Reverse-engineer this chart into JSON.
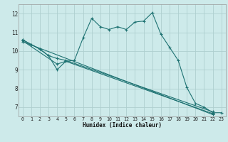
{
  "bg_color": "#cdeaea",
  "grid_color": "#aecfcf",
  "line_color": "#1e7272",
  "xlabel": "Humidex (Indice chaleur)",
  "xlim": [
    -0.5,
    23.5
  ],
  "ylim": [
    6.5,
    12.5
  ],
  "yticks": [
    7,
    8,
    9,
    10,
    11,
    12
  ],
  "xticks": [
    0,
    1,
    2,
    3,
    4,
    5,
    6,
    7,
    8,
    9,
    10,
    11,
    12,
    13,
    14,
    15,
    16,
    17,
    18,
    19,
    20,
    21,
    22,
    23
  ],
  "curve1": [
    [
      0,
      10.6
    ],
    [
      1,
      10.35
    ],
    [
      2,
      10.1
    ],
    [
      3,
      9.75
    ],
    [
      4,
      9.0
    ],
    [
      5,
      9.45
    ],
    [
      6,
      9.5
    ],
    [
      7,
      10.7
    ],
    [
      8,
      11.75
    ],
    [
      9,
      11.3
    ],
    [
      10,
      11.15
    ],
    [
      11,
      11.3
    ],
    [
      12,
      11.15
    ],
    [
      13,
      11.55
    ],
    [
      14,
      11.6
    ],
    [
      15,
      12.05
    ],
    [
      16,
      10.9
    ],
    [
      17,
      10.2
    ],
    [
      18,
      9.5
    ],
    [
      19,
      8.05
    ],
    [
      20,
      7.2
    ],
    [
      21,
      7.0
    ],
    [
      22,
      6.7
    ],
    [
      23,
      6.7
    ]
  ],
  "curve2": [
    [
      0,
      10.6
    ],
    [
      2,
      10.1
    ],
    [
      3,
      9.75
    ],
    [
      4,
      9.6
    ],
    [
      5,
      9.5
    ],
    [
      22,
      6.75
    ]
  ],
  "curve3": [
    [
      0,
      10.55
    ],
    [
      4,
      9.3
    ],
    [
      5,
      9.45
    ],
    [
      22,
      6.65
    ]
  ],
  "curve4": [
    [
      0,
      10.5
    ],
    [
      22,
      6.6
    ]
  ]
}
